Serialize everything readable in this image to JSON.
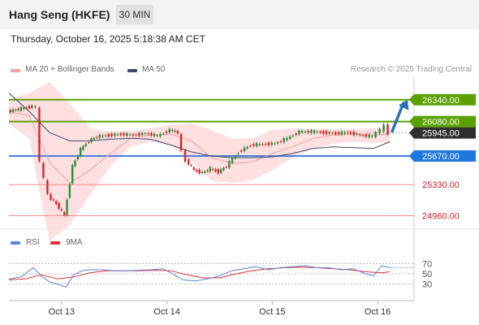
{
  "header": {
    "title": "Hang Seng (HKFE)",
    "interval": "30 MIN",
    "datetime": "Thursday, October 16, 2025 5:18:38 AM CET"
  },
  "legend": {
    "ma20_label": "MA 20 + Bollinger Bands",
    "ma50_label": "MA 50",
    "credit": "Research © 2025 Trading Central",
    "rsi_label": "RSI",
    "ma9_label": "9MA"
  },
  "colors": {
    "resistance": "#5aa100",
    "pivot": "#4a7fe0",
    "support": "#ff8a8a",
    "bollinger": "#ffd6d6",
    "ma20": "#f2a0a0",
    "ma50": "#3b4a6b",
    "up_candle": "#2e8b3e",
    "down_candle": "#cc2b2b",
    "arrow": "#2f6fb5",
    "current_price_bg": "#2f2f2f",
    "rsi": "#5b84d8",
    "rsi_ma": "#e03030"
  },
  "chart_data": [
    {
      "type": "line",
      "title": "",
      "x_ticks": [
        "Oct 13",
        "Oct 14",
        "Oct 15",
        "Oct 16"
      ],
      "y_ticks_shown": [
        26340,
        26080,
        25945,
        25670,
        25330,
        24960
      ],
      "levels": [
        {
          "value": 26340,
          "label": "26340.00",
          "kind": "resistance"
        },
        {
          "value": 26080,
          "label": "26080.00",
          "kind": "resistance"
        },
        {
          "value": 25945,
          "label": "25945.00",
          "kind": "current"
        },
        {
          "value": 25670,
          "label": "25670.00",
          "kind": "pivot"
        },
        {
          "value": 25330,
          "label": "25330.00",
          "kind": "support"
        },
        {
          "value": 24960,
          "label": "24960.00",
          "kind": "support"
        }
      ],
      "ylim": [
        24800,
        26560
      ],
      "xlim": [
        0,
        100
      ],
      "price_series": {
        "x": [
          0,
          2,
          4,
          6,
          7,
          8,
          9,
          10,
          12,
          14,
          16,
          18,
          20,
          22,
          25,
          28,
          31,
          34,
          37,
          40,
          42,
          43,
          44,
          46,
          48,
          50,
          52,
          54,
          57,
          60,
          63,
          66,
          69,
          72,
          75,
          78,
          81,
          84,
          87,
          90,
          91,
          92,
          93,
          94
        ],
        "values": [
          26200,
          26220,
          26240,
          26260,
          26250,
          25600,
          25400,
          25200,
          25100,
          24960,
          25550,
          25750,
          25850,
          25900,
          25920,
          25930,
          25920,
          25940,
          25910,
          25980,
          25950,
          25720,
          25620,
          25500,
          25470,
          25520,
          25480,
          25550,
          25720,
          25800,
          25810,
          25820,
          25880,
          25960,
          25960,
          25950,
          25940,
          25950,
          25920,
          25900,
          25950,
          25980,
          26030,
          25945
        ]
      },
      "ma50": {
        "x": [
          0,
          5,
          10,
          15,
          20,
          25,
          30,
          35,
          40,
          45,
          50,
          55,
          60,
          65,
          70,
          75,
          80,
          85,
          90,
          94
        ],
        "values": [
          26420,
          26200,
          25950,
          25850,
          25850,
          25870,
          25880,
          25870,
          25800,
          25720,
          25670,
          25650,
          25650,
          25660,
          25700,
          25760,
          25780,
          25770,
          25760,
          25840
        ]
      },
      "ma20": {
        "x": [
          0,
          5,
          10,
          15,
          20,
          25,
          30,
          35,
          40,
          45,
          50,
          55,
          60,
          65,
          70,
          75,
          80,
          85,
          90,
          94
        ],
        "values": [
          26200,
          26150,
          25600,
          25350,
          25500,
          25700,
          25880,
          25920,
          25930,
          25850,
          25650,
          25580,
          25600,
          25700,
          25780,
          25880,
          25920,
          25930,
          25920,
          25930
        ]
      },
      "bollinger_upper": {
        "x": [
          0,
          5,
          10,
          15,
          20,
          25,
          30,
          35,
          40,
          45,
          50,
          55,
          60,
          65,
          70,
          75,
          80,
          85,
          90,
          94
        ],
        "values": [
          26350,
          26420,
          26550,
          26300,
          26000,
          25960,
          25970,
          26000,
          26040,
          26060,
          25980,
          25880,
          25880,
          25980,
          26000,
          25990,
          25990,
          25990,
          26000,
          26020
        ]
      },
      "bollinger_lower": {
        "x": [
          0,
          5,
          10,
          15,
          20,
          25,
          30,
          35,
          40,
          45,
          50,
          55,
          60,
          65,
          70,
          75,
          80,
          85,
          90,
          94
        ],
        "values": [
          26050,
          25880,
          24650,
          24850,
          25200,
          25550,
          25780,
          25840,
          25800,
          25600,
          25380,
          25350,
          25380,
          25500,
          25650,
          25750,
          25820,
          25840,
          25830,
          25820
        ]
      },
      "projection": {
        "from": 25945,
        "to": 26340
      }
    },
    {
      "type": "line",
      "title": "",
      "y_ticks": [
        70,
        50,
        30
      ],
      "ylim": [
        10,
        90
      ],
      "series": [
        {
          "name": "RSI",
          "x": [
            0,
            3,
            6,
            8,
            10,
            12,
            14,
            16,
            18,
            20,
            23,
            26,
            29,
            32,
            35,
            38,
            40,
            43,
            46,
            49,
            52,
            55,
            58,
            61,
            64,
            67,
            70,
            73,
            76,
            79,
            82,
            85,
            88,
            90,
            92,
            94
          ],
          "values": [
            40,
            44,
            62,
            46,
            34,
            30,
            24,
            48,
            56,
            58,
            58,
            56,
            56,
            57,
            58,
            60,
            52,
            38,
            36,
            40,
            46,
            56,
            60,
            64,
            58,
            62,
            64,
            66,
            62,
            62,
            58,
            60,
            50,
            46,
            66,
            62
          ]
        },
        {
          "name": "9MA",
          "x": [
            0,
            4,
            8,
            12,
            16,
            20,
            24,
            28,
            32,
            36,
            40,
            44,
            48,
            52,
            56,
            60,
            64,
            68,
            72,
            76,
            80,
            84,
            88,
            92,
            94
          ],
          "values": [
            38,
            40,
            48,
            40,
            44,
            52,
            56,
            56,
            56,
            57,
            56,
            48,
            42,
            42,
            50,
            56,
            60,
            62,
            63,
            62,
            60,
            58,
            54,
            52,
            54
          ]
        }
      ]
    }
  ]
}
